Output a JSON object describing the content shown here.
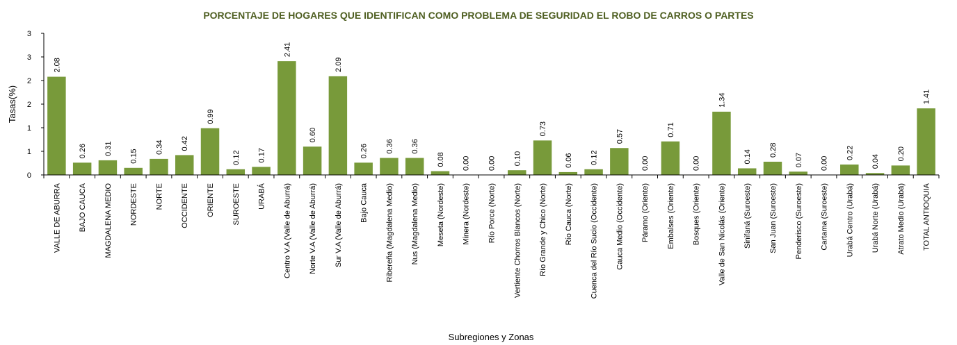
{
  "chart_data": {
    "type": "bar",
    "title": "PORCENTAJE DE HOGARES QUE IDENTIFICAN COMO PROBLEMA DE SEGURIDAD EL ROBO DE CARROS O PARTES",
    "xlabel": "Subregiones y Zonas",
    "ylabel": "Tasas(%)",
    "ylim": [
      0,
      3
    ],
    "yticks": [
      0,
      0.5,
      1,
      1.5,
      2,
      2.5,
      3
    ],
    "ytick_labels": [
      "0",
      "1",
      "1",
      "2",
      "2",
      "3",
      "3"
    ],
    "grid": false,
    "legend": "none",
    "bar_color": "#789a3a",
    "title_color": "#4f5f22",
    "categories": [
      "VALLE DE ABURRA",
      "BAJO CAUCA",
      "MAGDALENA MEDIO",
      "NORDESTE",
      "NORTE",
      "OCCIDENTE",
      "ORIENTE",
      "SUROESTE",
      "URABÁ",
      "Centro V.A (Valle de Aburrá)",
      "Norte V.A (Valle de Aburrá)",
      "Sur V.A (Valle de Aburrá)",
      "Bajo Cauca",
      "Ribereña  (Magdalena Medio)",
      "Nus  (Magdalena Medio)",
      "Meseta  (Nordeste)",
      "Minera  (Nordeste)",
      "Río Porce   (Norte)",
      "Vertiente Chorros Blancos  (Norte)",
      "Río Grande y Chico  (Norte)",
      "Río Cauca  (Norte)",
      "Cuenca del Río Sucio  (Occidente)",
      "Cauca Medio  (Occidente)",
      "Páramo  (Oriente)",
      "Embalses (Oriente)",
      "Bosques  (Oriente)",
      "Valle de San Nicolás (Oriente)",
      "Sinifaná  (Suroeste)",
      "San Juan  (Suroeste)",
      "Penderisco  (Suroeste)",
      "Cartama  (Suroeste)",
      "Urabá Centro  (Urabá)",
      "Urabá Norte  (Urabá)",
      "Atrato Medio  (Urabá)",
      "TOTAL ANTIOQUIA"
    ],
    "values": [
      2.08,
      0.26,
      0.31,
      0.15,
      0.34,
      0.42,
      0.99,
      0.12,
      0.17,
      2.41,
      0.6,
      2.09,
      0.26,
      0.36,
      0.36,
      0.08,
      0.0,
      0.0,
      0.1,
      0.73,
      0.06,
      0.12,
      0.57,
      0.0,
      0.71,
      0.0,
      1.34,
      0.14,
      0.28,
      0.07,
      0.0,
      0.22,
      0.04,
      0.2,
      1.41
    ],
    "value_labels": [
      "2.08",
      "0.26",
      "0.31",
      "0.15",
      "0.34",
      "0.42",
      "0.99",
      "0.12",
      "0.17",
      "2.41",
      "0.60",
      "2.09",
      "0.26",
      "0.36",
      "0.36",
      "0.08",
      "0.00",
      "0.00",
      "0.10",
      "0.73",
      "0.06",
      "0.12",
      "0.57",
      "0.00",
      "0.71",
      "0.00",
      "1.34",
      "0.14",
      "0.28",
      "0.07",
      "0.00",
      "0.22",
      "0.04",
      "0.20",
      "1.41"
    ]
  }
}
